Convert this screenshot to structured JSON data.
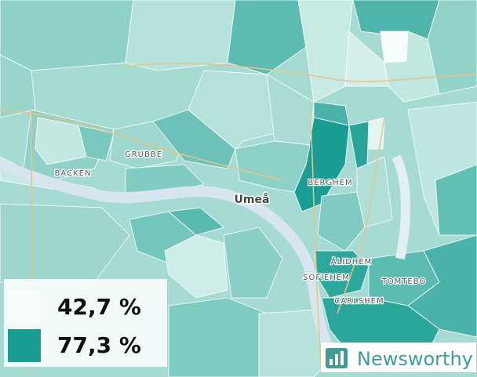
{
  "map": {
    "places": [
      "GRUBBE",
      "BACKEN",
      "BERGHEM",
      "Umeå",
      "ÅLIDHEM",
      "SOFIEHEM",
      "TOMTEBO",
      "CARLSHEM"
    ]
  },
  "legend": {
    "entries": [
      {
        "label": "42,7 %",
        "color": "#f7fdfc"
      },
      {
        "label": "77,3 %",
        "color": "#1a9e94"
      }
    ]
  },
  "brand": {
    "name": "Newsworthy"
  }
}
